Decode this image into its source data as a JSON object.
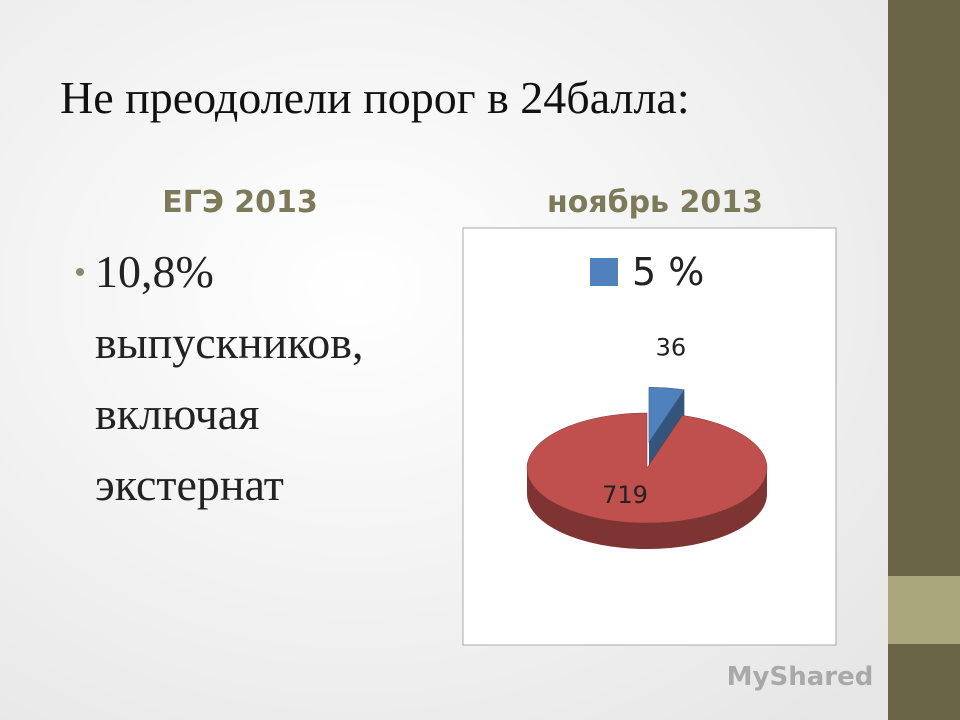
{
  "title": "Не преодолели порог в 24балла:",
  "columns": [
    "ЕГЭ 2013",
    "ноябрь 2013"
  ],
  "bullet": [
    "10,8%",
    "выпускников,",
    "включая",
    "экстернат"
  ],
  "watermark": "MyShared",
  "chart_data": {
    "type": "pie",
    "categories": [
      "5 %",
      null
    ],
    "values": [
      36,
      719
    ],
    "colors": [
      "#4f81bd",
      "#c0504d"
    ],
    "legend": "top"
  }
}
